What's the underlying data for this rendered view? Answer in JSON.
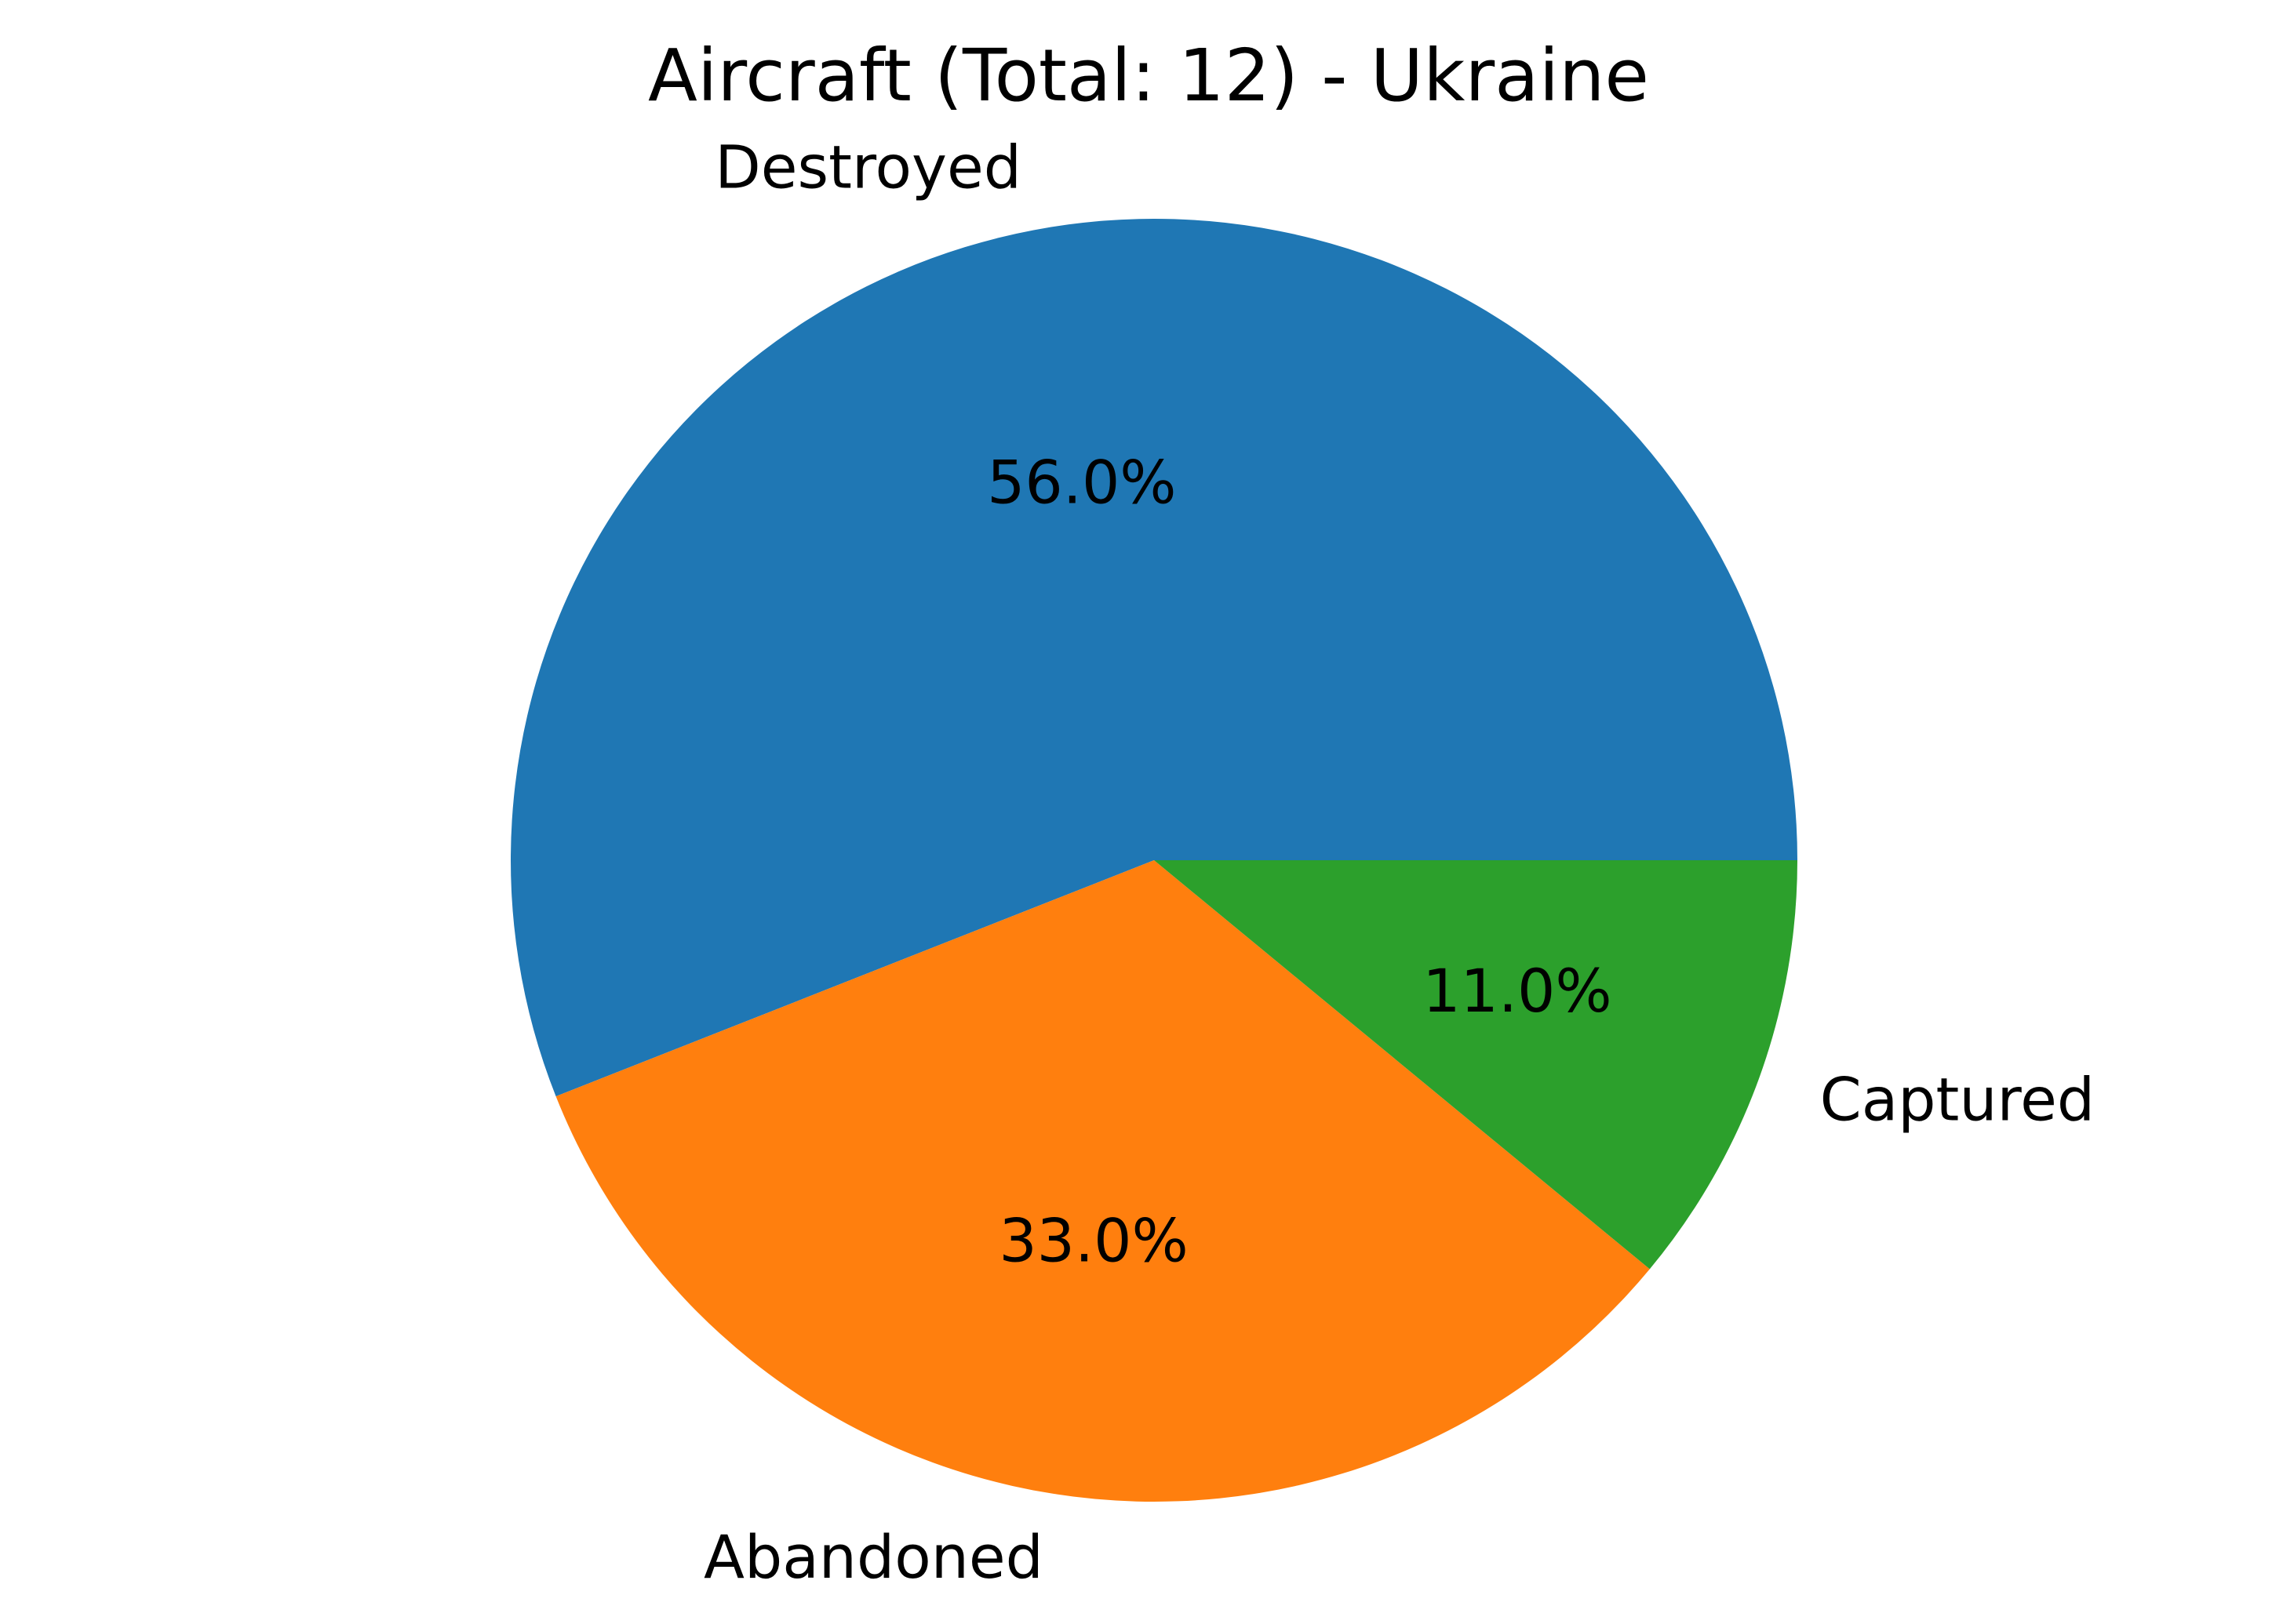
{
  "chart_data": {
    "type": "pie",
    "title": "Aircraft (Total: 12) - Ukraine",
    "start_angle": 0,
    "direction": "counterclockwise",
    "slices": [
      {
        "label": "Destroyed",
        "percent": 56.0,
        "pct_label": "56.0%",
        "color": "#1f77b4"
      },
      {
        "label": "Abandoned",
        "percent": 33.0,
        "pct_label": "33.0%",
        "color": "#ff7f0e"
      },
      {
        "label": "Captured",
        "percent": 11.0,
        "pct_label": "11.0%",
        "color": "#2ca02c"
      }
    ],
    "legend": "none"
  }
}
